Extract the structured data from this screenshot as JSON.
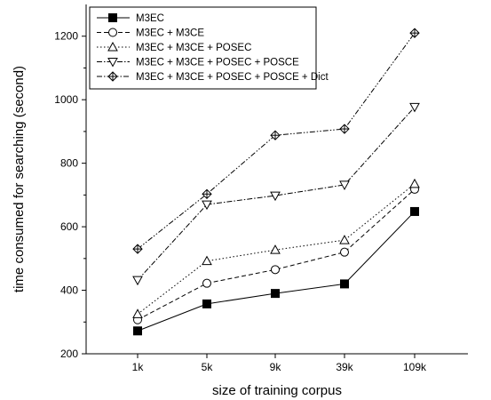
{
  "chart_data": {
    "type": "line",
    "title": "",
    "xlabel": "size of training corpus",
    "ylabel": "time consumed for searching (second)",
    "categories": [
      "1k",
      "5k",
      "9k",
      "39k",
      "109k"
    ],
    "ylim": [
      200,
      1300
    ],
    "yticks": [
      200,
      400,
      600,
      800,
      1000,
      1200
    ],
    "grid": false,
    "legend_position": "top-left",
    "series": [
      {
        "name": "M3EC",
        "marker": "filled-square",
        "dash": "solid",
        "values": [
          272,
          357,
          390,
          420,
          648
        ]
      },
      {
        "name": "M3EC + M3CE",
        "marker": "open-circle",
        "dash": "dashed",
        "values": [
          307,
          422,
          465,
          520,
          718
        ]
      },
      {
        "name": "M3EC + M3CE + POSEC",
        "marker": "triangle-up",
        "dash": "dotted",
        "values": [
          325,
          492,
          527,
          558,
          735
        ]
      },
      {
        "name": "M3EC + M3CE + POSEC + POSCE",
        "marker": "triangle-down",
        "dash": "dashdot",
        "values": [
          432,
          670,
          698,
          732,
          977
        ]
      },
      {
        "name": "M3EC + M3CE + POSEC + POSCE + Dict",
        "marker": "diamond-plus",
        "dash": "dashdotdot",
        "values": [
          530,
          703,
          888,
          908,
          1210
        ]
      }
    ]
  }
}
